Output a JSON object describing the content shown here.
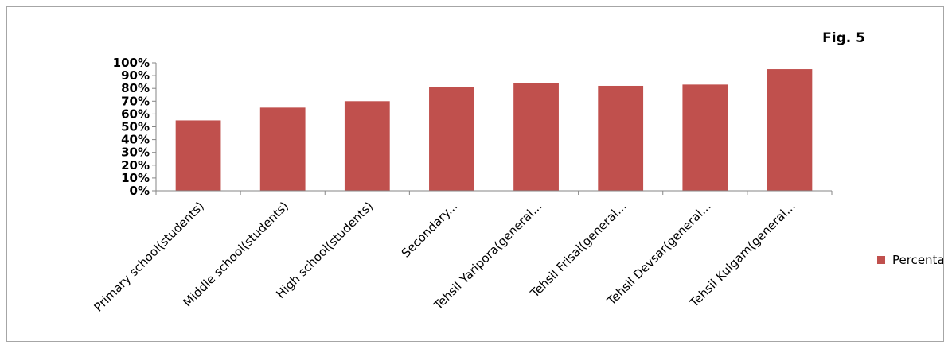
{
  "chart_data": {
    "type": "bar",
    "title": "Fig. 5",
    "categories": [
      "Primary school(students)",
      "Middle school(students)",
      "High school(students)",
      "Secondary...",
      "Tehsil Yaripora(general...",
      "Tehsil Frisal(general...",
      "Tehsil Devsar(general...",
      "Tehsil Kulgam(general..."
    ],
    "series": [
      {
        "name": "Percentage",
        "values": [
          55,
          65,
          70,
          81,
          84,
          82,
          83,
          95
        ],
        "color": "#c0504d"
      }
    ],
    "yticks": [
      "0%",
      "10%",
      "20%",
      "30%",
      "40%",
      "50%",
      "60%",
      "70%",
      "80%",
      "90%",
      "100%"
    ],
    "ylim": [
      0,
      100
    ],
    "xlabel": "",
    "ylabel": "",
    "grid": false,
    "legend_position": "right"
  }
}
